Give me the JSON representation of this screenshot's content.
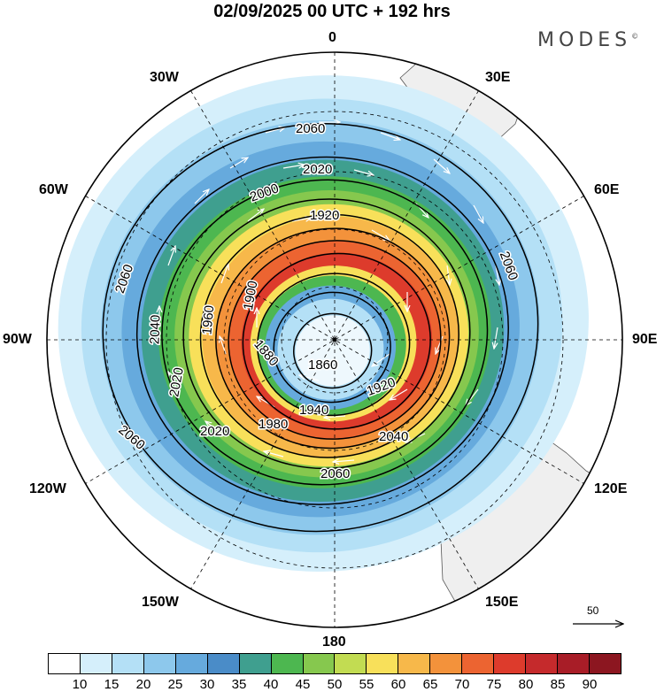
{
  "header": {
    "title": "02/09/2025  00 UTC  + 192 hrs",
    "brand": "MODES",
    "brand_mark": "©"
  },
  "longitude_labels": {
    "n0": "0",
    "n30e": "30E",
    "n60e": "60E",
    "n90e": "90E",
    "n120e": "120E",
    "n150e": "150E",
    "n180": "180",
    "n150w": "150W",
    "n120w": "120W",
    "n90w": "90W",
    "n60w": "60W",
    "n30w": "30W"
  },
  "contours": [
    {
      "label": "1860"
    },
    {
      "label": "1880"
    },
    {
      "label": "1900"
    },
    {
      "label": "1920"
    },
    {
      "label": "1940"
    },
    {
      "label": "1960"
    },
    {
      "label": "1980"
    },
    {
      "label": "2000"
    },
    {
      "label": "2020"
    },
    {
      "label": "2040"
    },
    {
      "label": "2060"
    }
  ],
  "reference_vector": {
    "label": "50"
  },
  "colorbar": {
    "colors": [
      "#ffffff",
      "#d5effb",
      "#b4e0f6",
      "#8dc8ec",
      "#66aadd",
      "#4a8cc8",
      "#3f9f8f",
      "#4db750",
      "#86c84e",
      "#c2dc52",
      "#f8e05a",
      "#f7b84a",
      "#f3923b",
      "#ec6431",
      "#dd3b2c",
      "#c52a2c",
      "#a81d27",
      "#8c1620"
    ],
    "ticks": [
      "10",
      "15",
      "20",
      "25",
      "30",
      "35",
      "40",
      "45",
      "50",
      "55",
      "60",
      "65",
      "70",
      "75",
      "80",
      "85",
      "90"
    ]
  }
}
